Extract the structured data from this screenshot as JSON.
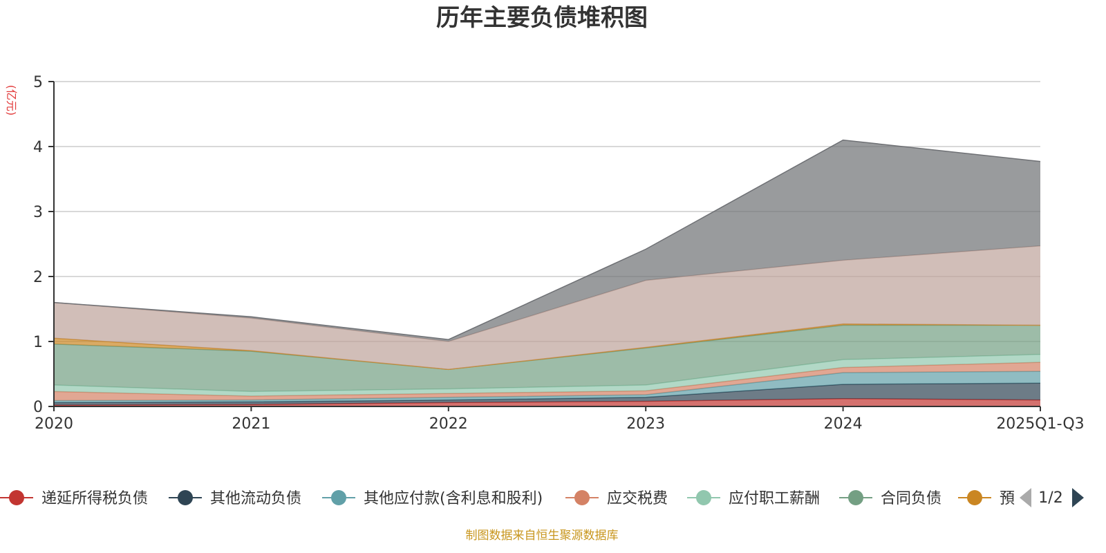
{
  "chart_data": {
    "type": "area",
    "title": "历年主要负债堆积图",
    "unit_label": "(亿元)",
    "categories": [
      "2020",
      "2021",
      "2022",
      "2023",
      "2024",
      "2025Q1-Q3"
    ],
    "ylim": [
      0,
      5
    ],
    "yticks": [
      "0",
      "1",
      "2",
      "3",
      "4",
      "5"
    ],
    "grid": true,
    "legend_position": "bottom",
    "legend_page": "1/2",
    "stacked": true,
    "series": [
      {
        "name": "递延所得税负债",
        "color": "#c23531",
        "values": [
          0.02,
          0.03,
          0.06,
          0.08,
          0.12,
          0.1
        ]
      },
      {
        "name": "其他流动负债",
        "color": "#2f4554",
        "values": [
          0.04,
          0.04,
          0.04,
          0.06,
          0.22,
          0.26
        ]
      },
      {
        "name": "其他应付款(含利息和股利)",
        "color": "#61a0a8",
        "values": [
          0.03,
          0.03,
          0.04,
          0.04,
          0.18,
          0.18
        ]
      },
      {
        "name": "应交税费",
        "color": "#d48265",
        "values": [
          0.14,
          0.06,
          0.06,
          0.06,
          0.08,
          0.14
        ]
      },
      {
        "name": "应付职工薪酬",
        "color": "#91c7ae",
        "values": [
          0.1,
          0.07,
          0.07,
          0.09,
          0.12,
          0.12
        ]
      },
      {
        "name": "合同负债",
        "color": "#749f83",
        "values": [
          0.63,
          0.62,
          0.3,
          0.57,
          0.53,
          0.45
        ]
      },
      {
        "name": "",
        "color": "#ca8622",
        "values": [
          0.09,
          0.01,
          0.0,
          0.01,
          0.02,
          0.0
        ]
      },
      {
        "name": "",
        "color": "#bda29a",
        "values": [
          0.55,
          0.5,
          0.43,
          1.03,
          0.98,
          1.22
        ]
      },
      {
        "name": "",
        "color": "#6e7074",
        "values": [
          0.0,
          0.02,
          0.03,
          0.48,
          1.85,
          1.3
        ]
      }
    ],
    "legend_items": [
      {
        "label": "递延所得税负债",
        "color": "#c23531"
      },
      {
        "label": "其他流动负债",
        "color": "#2f4554"
      },
      {
        "label": "其他应付款(含利息和股利)",
        "color": "#61a0a8"
      },
      {
        "label": "应交税费",
        "color": "#d48265"
      },
      {
        "label": "应付职工薪酬",
        "color": "#91c7ae"
      },
      {
        "label": "合同负债",
        "color": "#749f83"
      },
      {
        "label": "預",
        "color": "#ca8622"
      }
    ],
    "source": "制图数据来自恒生聚源数据库"
  }
}
